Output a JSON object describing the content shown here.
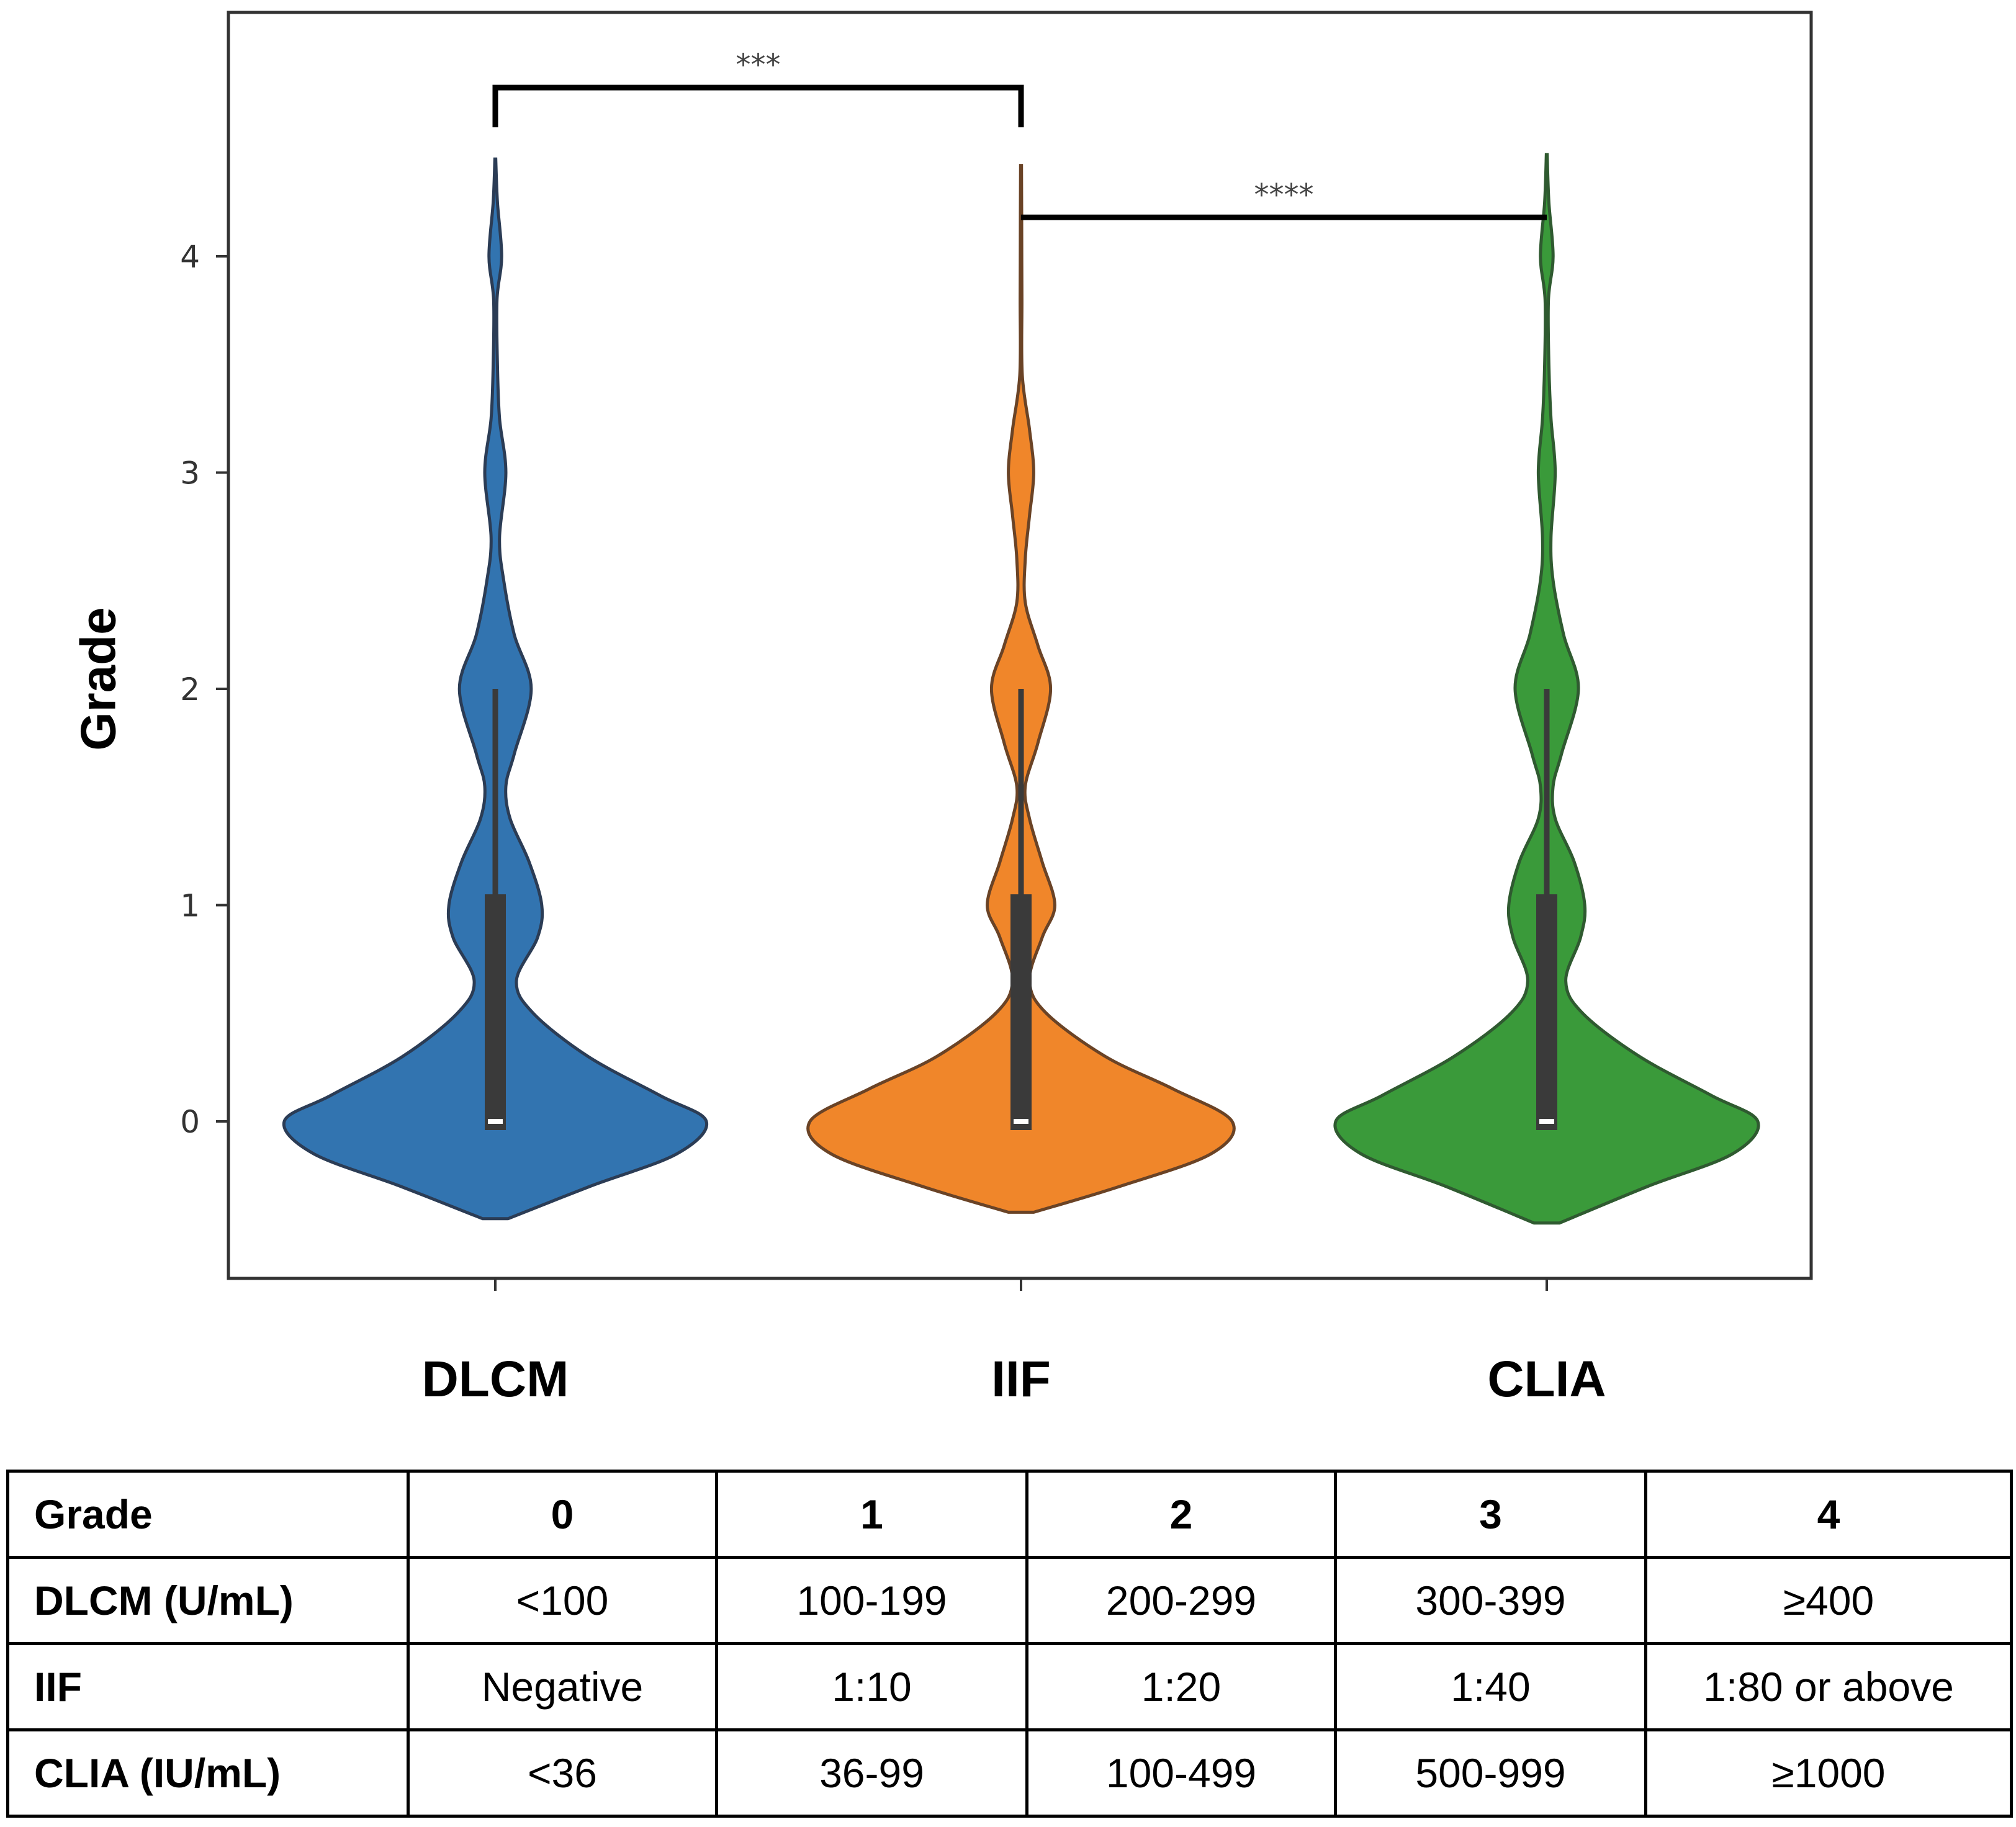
{
  "chart_data": {
    "type": "violin",
    "ylabel": "Grade",
    "xlabel": "",
    "ylim": [
      -0.7,
      5.1
    ],
    "yticks": [
      0,
      1,
      2,
      3,
      4
    ],
    "categories": [
      "DLCM",
      "IIF",
      "CLIA"
    ],
    "colors": {
      "DLCM": {
        "fill": "#3274b0",
        "stroke": "#2b3c55"
      },
      "IIF": {
        "fill": "#f0862a",
        "stroke": "#6a4326"
      },
      "CLIA": {
        "fill": "#3a9a3a",
        "stroke": "#2f5a30"
      }
    },
    "series": [
      {
        "name": "DLCM",
        "y_range": [
          -0.45,
          4.45
        ],
        "median": 0,
        "q1": 0,
        "q3": 1.05,
        "whisker_low": 0,
        "whisker_high": 2,
        "density": [
          [
            -0.45,
            0.06
          ],
          [
            -0.3,
            0.45
          ],
          [
            -0.15,
            0.86
          ],
          [
            0,
            1.0
          ],
          [
            0.12,
            0.78
          ],
          [
            0.3,
            0.44
          ],
          [
            0.5,
            0.18
          ],
          [
            0.65,
            0.1
          ],
          [
            0.85,
            0.2
          ],
          [
            1.0,
            0.22
          ],
          [
            1.2,
            0.16
          ],
          [
            1.4,
            0.07
          ],
          [
            1.55,
            0.05
          ],
          [
            1.7,
            0.09
          ],
          [
            2.0,
            0.17
          ],
          [
            2.25,
            0.09
          ],
          [
            2.5,
            0.04
          ],
          [
            2.7,
            0.02
          ],
          [
            3.0,
            0.05
          ],
          [
            3.25,
            0.02
          ],
          [
            3.5,
            0.01
          ],
          [
            3.8,
            0.008
          ],
          [
            4.0,
            0.03
          ],
          [
            4.25,
            0.01
          ],
          [
            4.45,
            0.002
          ]
        ]
      },
      {
        "name": "IIF",
        "y_range": [
          -0.42,
          4.42
        ],
        "median": 0,
        "q1": 0,
        "q3": 1.05,
        "whisker_low": 0,
        "whisker_high": 2,
        "density": [
          [
            -0.42,
            0.06
          ],
          [
            -0.3,
            0.47
          ],
          [
            -0.15,
            0.9
          ],
          [
            0,
            1.0
          ],
          [
            0.15,
            0.72
          ],
          [
            0.3,
            0.4
          ],
          [
            0.5,
            0.12
          ],
          [
            0.65,
            0.04
          ],
          [
            0.85,
            0.1
          ],
          [
            1.0,
            0.16
          ],
          [
            1.2,
            0.1
          ],
          [
            1.4,
            0.04
          ],
          [
            1.55,
            0.02
          ],
          [
            1.75,
            0.08
          ],
          [
            2.0,
            0.14
          ],
          [
            2.2,
            0.08
          ],
          [
            2.4,
            0.02
          ],
          [
            2.6,
            0.02
          ],
          [
            2.8,
            0.04
          ],
          [
            3.0,
            0.06
          ],
          [
            3.2,
            0.04
          ],
          [
            3.45,
            0.006
          ],
          [
            3.8,
            0.004
          ],
          [
            4.2,
            0.003
          ],
          [
            4.42,
            0.002
          ]
        ]
      },
      {
        "name": "CLIA",
        "y_range": [
          -0.47,
          4.47
        ],
        "median": 0,
        "q1": 0,
        "q3": 1.05,
        "whisker_low": 0,
        "whisker_high": 2,
        "density": [
          [
            -0.47,
            0.06
          ],
          [
            -0.3,
            0.48
          ],
          [
            -0.15,
            0.88
          ],
          [
            0,
            1.0
          ],
          [
            0.12,
            0.78
          ],
          [
            0.3,
            0.44
          ],
          [
            0.5,
            0.17
          ],
          [
            0.65,
            0.09
          ],
          [
            0.85,
            0.16
          ],
          [
            1.0,
            0.18
          ],
          [
            1.2,
            0.13
          ],
          [
            1.4,
            0.04
          ],
          [
            1.55,
            0.03
          ],
          [
            1.7,
            0.07
          ],
          [
            2.0,
            0.15
          ],
          [
            2.25,
            0.08
          ],
          [
            2.5,
            0.03
          ],
          [
            2.7,
            0.02
          ],
          [
            3.0,
            0.04
          ],
          [
            3.25,
            0.02
          ],
          [
            3.5,
            0.01
          ],
          [
            3.8,
            0.008
          ],
          [
            4.0,
            0.03
          ],
          [
            4.25,
            0.01
          ],
          [
            4.47,
            0.002
          ]
        ]
      }
    ],
    "significance": [
      {
        "from": "DLCM",
        "to": "IIF",
        "label": "***",
        "y": 4.78
      },
      {
        "from": "IIF",
        "to": "CLIA",
        "label": "****",
        "y": 4.18
      }
    ]
  },
  "table": {
    "header": [
      "Grade",
      "0",
      "1",
      "2",
      "3",
      "4"
    ],
    "rows": [
      [
        "DLCM (U/mL)",
        "<100",
        "100-199",
        "200-299",
        "300-399",
        "≥400"
      ],
      [
        "IIF",
        "Negative",
        "1:10",
        "1:20",
        "1:40",
        "1:80 or above"
      ],
      [
        "CLIA (IU/mL)",
        "<36",
        "36-99",
        "100-499",
        "500-999",
        "≥1000"
      ]
    ]
  }
}
